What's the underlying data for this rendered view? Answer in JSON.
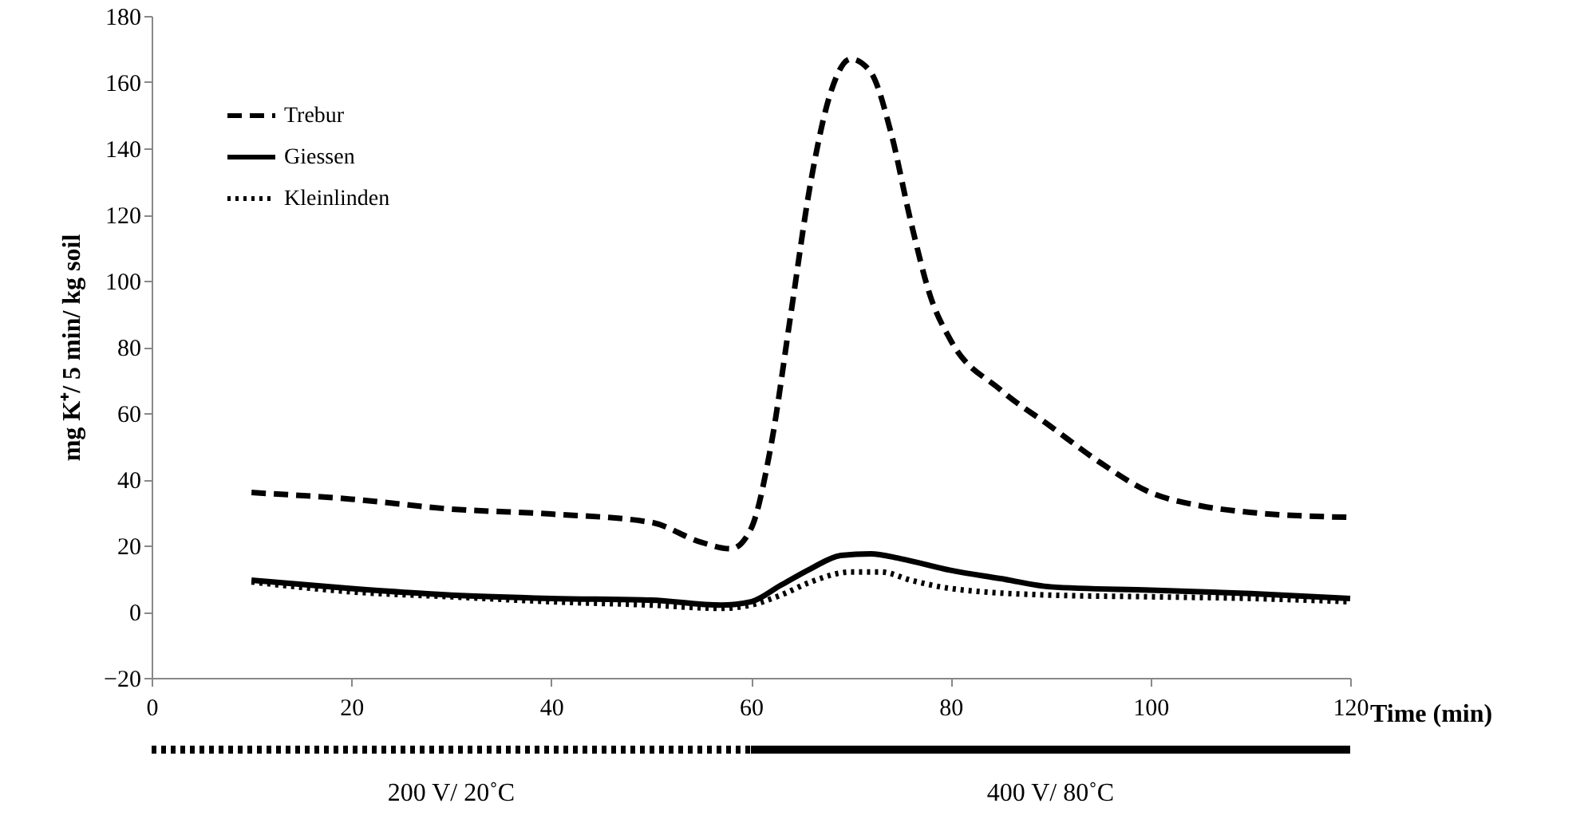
{
  "chart_data": {
    "type": "line",
    "xlabel": "Time (min)",
    "ylabel": "mg K⁺/ 5 min/ kg soil",
    "xlim": [
      0,
      120
    ],
    "xticks": [
      0,
      20,
      40,
      60,
      80,
      100,
      120
    ],
    "ylim": [
      -20,
      180
    ],
    "yticks": [
      -20,
      0,
      20,
      40,
      60,
      80,
      100,
      120,
      140,
      160,
      180
    ],
    "legend": "top left",
    "grid": false,
    "series": [
      {
        "name": "Trebur",
        "color": "#000000",
        "line_style": "dashed",
        "x": [
          10,
          20,
          30,
          40,
          50,
          55,
          58,
          60,
          62,
          64,
          66,
          68,
          70,
          72,
          74,
          76,
          78,
          80,
          85,
          90,
          95,
          100,
          105,
          110,
          120
        ],
        "values": [
          36,
          34,
          31,
          29.5,
          27,
          21,
          19,
          25,
          50,
          90,
          130,
          157,
          167,
          163,
          145,
          118,
          95,
          82,
          67,
          56,
          45,
          36,
          32,
          30,
          28.5
        ]
      },
      {
        "name": "Giessen",
        "color": "#000000",
        "line_style": "solid",
        "x": [
          10,
          20,
          30,
          40,
          50,
          57,
          60,
          63,
          66,
          69,
          72,
          75,
          80,
          85,
          90,
          100,
          110,
          120
        ],
        "values": [
          9.5,
          7,
          5,
          4,
          3.5,
          2,
          3,
          8,
          13,
          17,
          17.5,
          16,
          12.5,
          10,
          7.5,
          6.5,
          5.5,
          4
        ]
      },
      {
        "name": "Kleinlinden",
        "color": "#000000",
        "line_style": "dotted",
        "x": [
          10,
          20,
          30,
          40,
          50,
          57,
          60,
          63,
          66,
          70,
          73,
          76,
          80,
          90,
          100,
          110,
          120
        ],
        "values": [
          9,
          6,
          4.5,
          3,
          2,
          1,
          2,
          5,
          9,
          12,
          12,
          9.5,
          7,
          5,
          4.5,
          4,
          3
        ]
      }
    ],
    "annotations": [
      "200 V/ 20˚C",
      "400 V/ 80˚C"
    ]
  }
}
